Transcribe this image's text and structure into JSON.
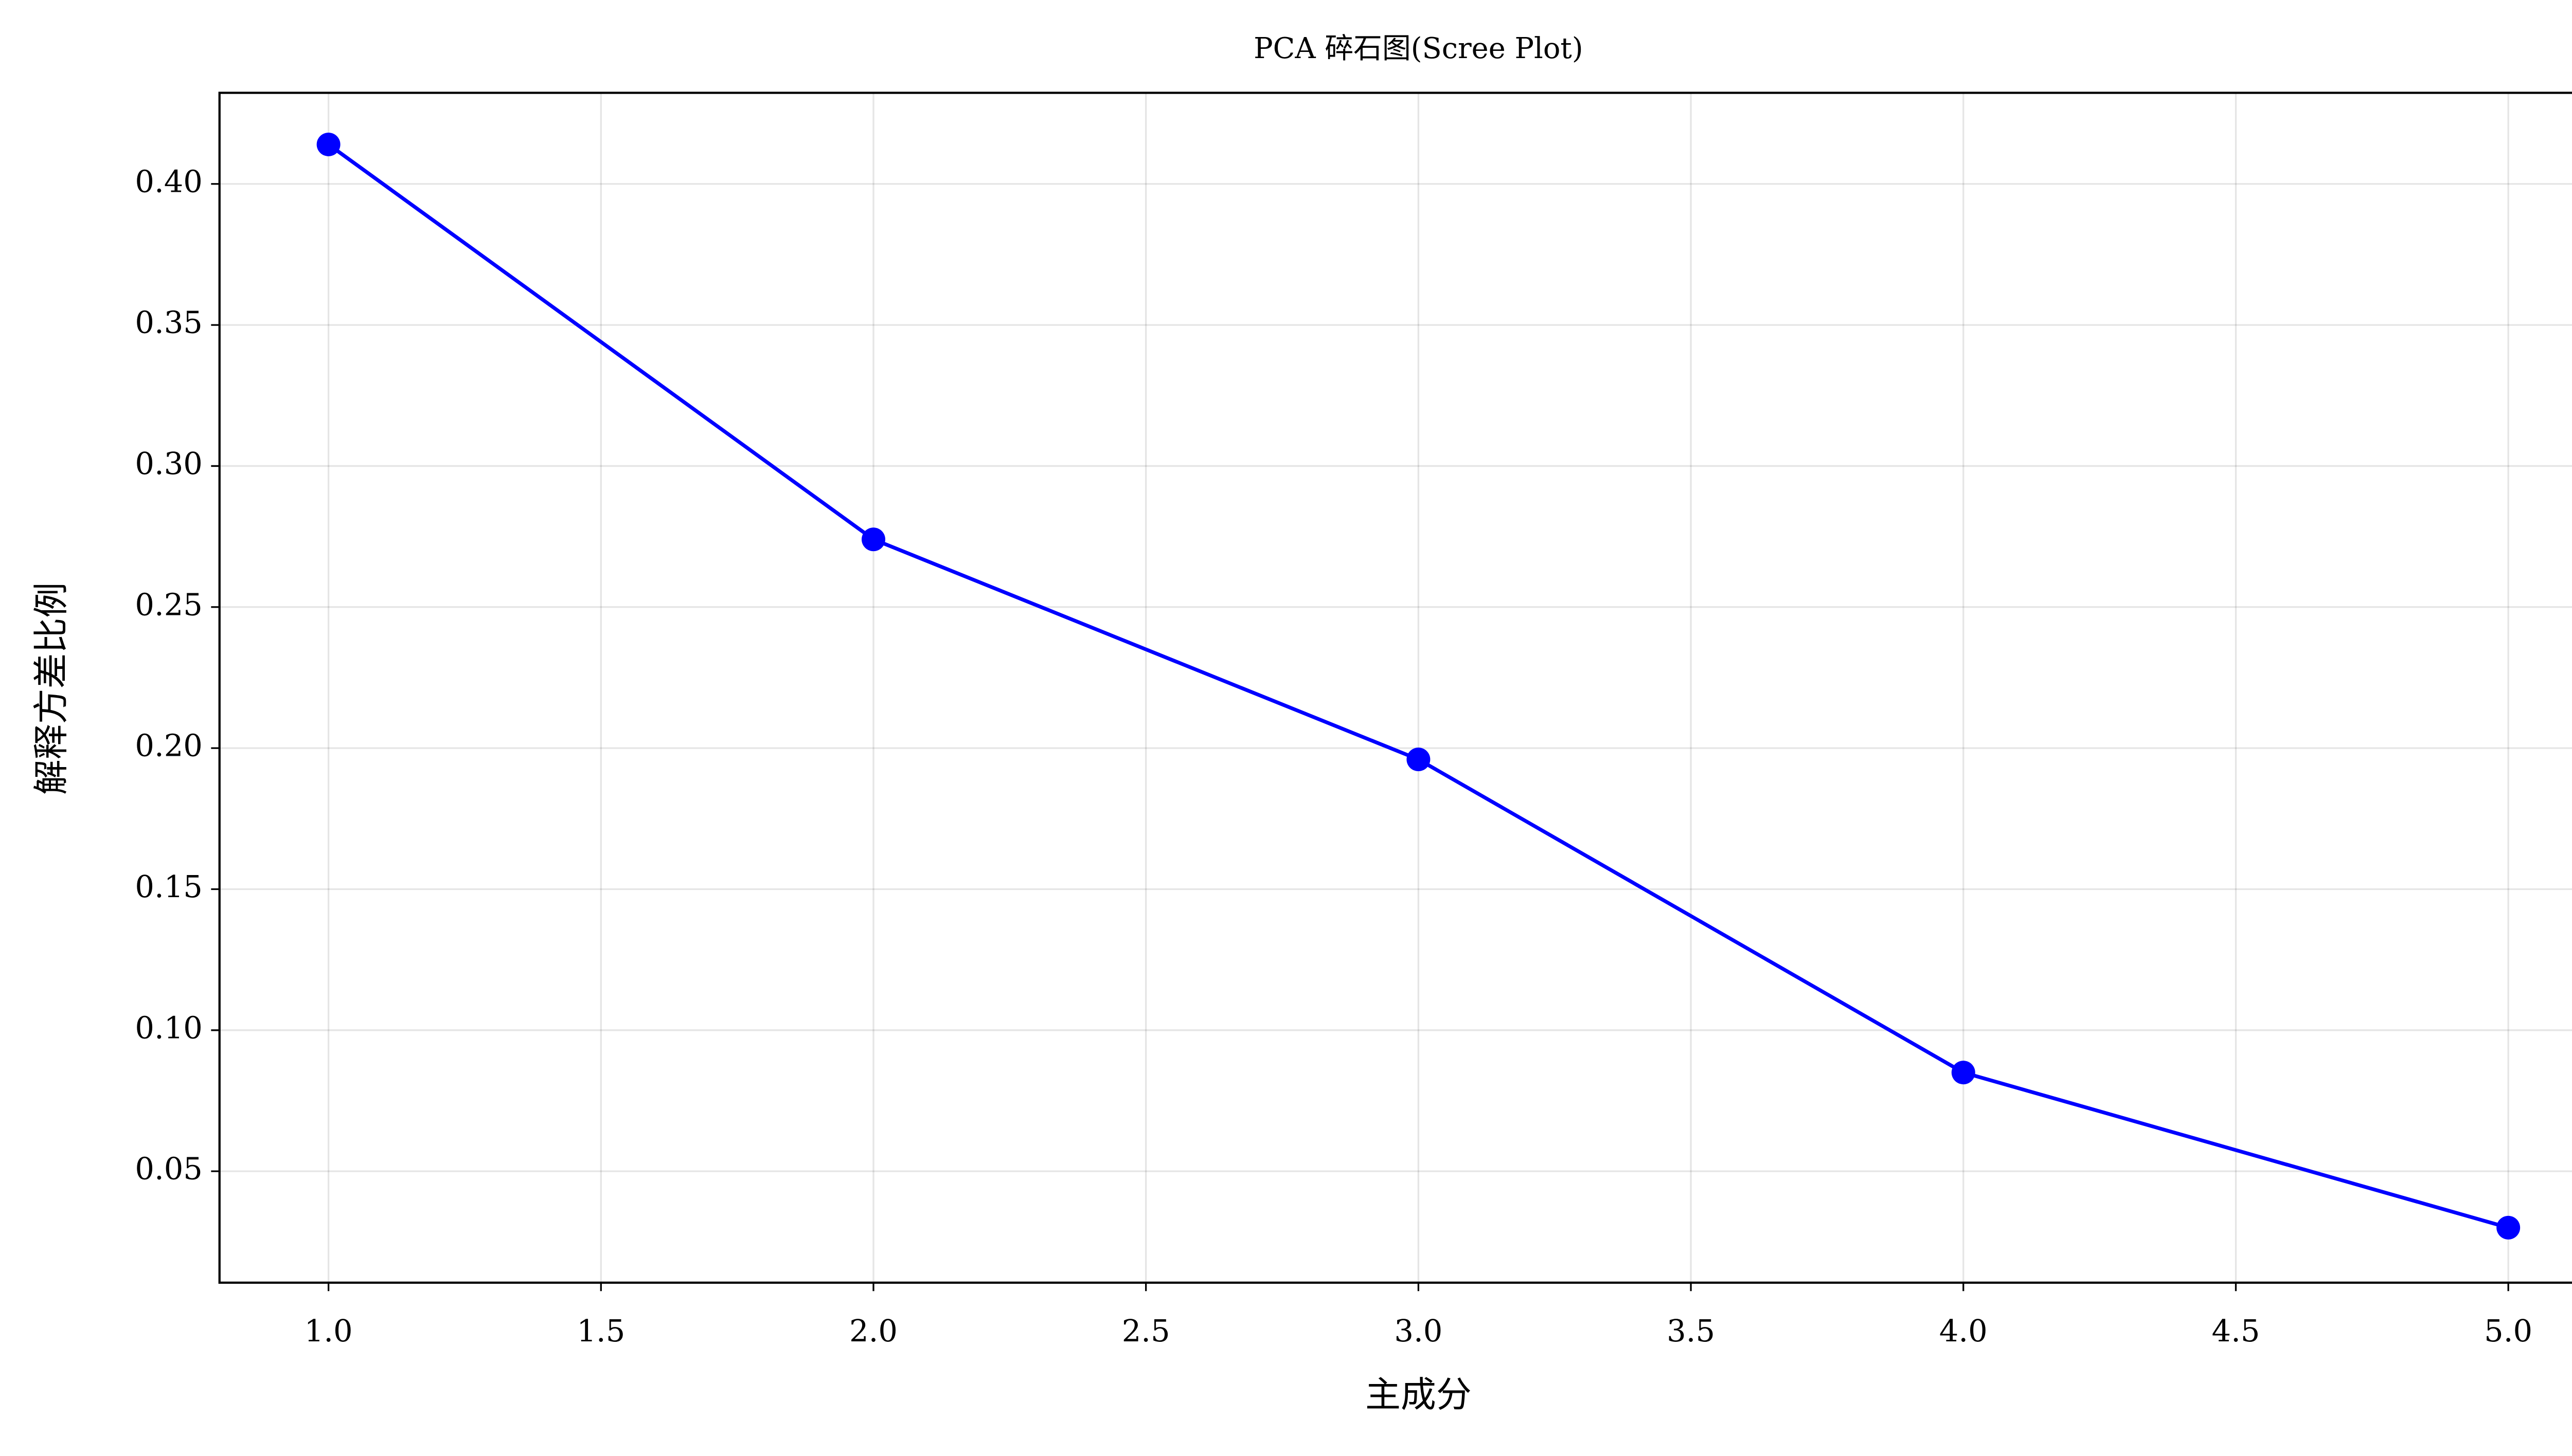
{
  "chart_data": {
    "type": "line",
    "title": "PCA 碎石图(Scree Plot)",
    "x_label": "主成分",
    "y_label": "解释方差比例",
    "x": [
      1,
      2,
      3,
      4,
      5
    ],
    "series": [
      {
        "name": "解释方差比例",
        "color": "#0000ff",
        "values": [
          0.414,
          0.274,
          0.196,
          0.085,
          0.03
        ]
      }
    ],
    "xlim": [
      0.8,
      5.2
    ],
    "xticks": [
      {
        "value": 1,
        "label": "1.0"
      },
      {
        "value": 1.5,
        "label": "1.5"
      },
      {
        "value": 2,
        "label": "2.0"
      },
      {
        "value": 2.5,
        "label": "2.5"
      },
      {
        "value": 3,
        "label": "3.0"
      },
      {
        "value": 3.5,
        "label": "3.5"
      },
      {
        "value": 4,
        "label": "4.0"
      },
      {
        "value": 4.5,
        "label": "4.5"
      },
      {
        "value": 5,
        "label": "5.0"
      }
    ],
    "ylim": [
      0.0105,
      0.4323
    ],
    "yticks": [
      0.05,
      {
        "value": 0.1,
        "label": "0.10"
      },
      0.15,
      {
        "value": 0.2,
        "label": "0.20"
      },
      0.25,
      {
        "value": 0.3,
        "label": "0.30"
      },
      0.35,
      {
        "value": 0.4,
        "label": "0.40"
      }
    ],
    "grid": true
  }
}
